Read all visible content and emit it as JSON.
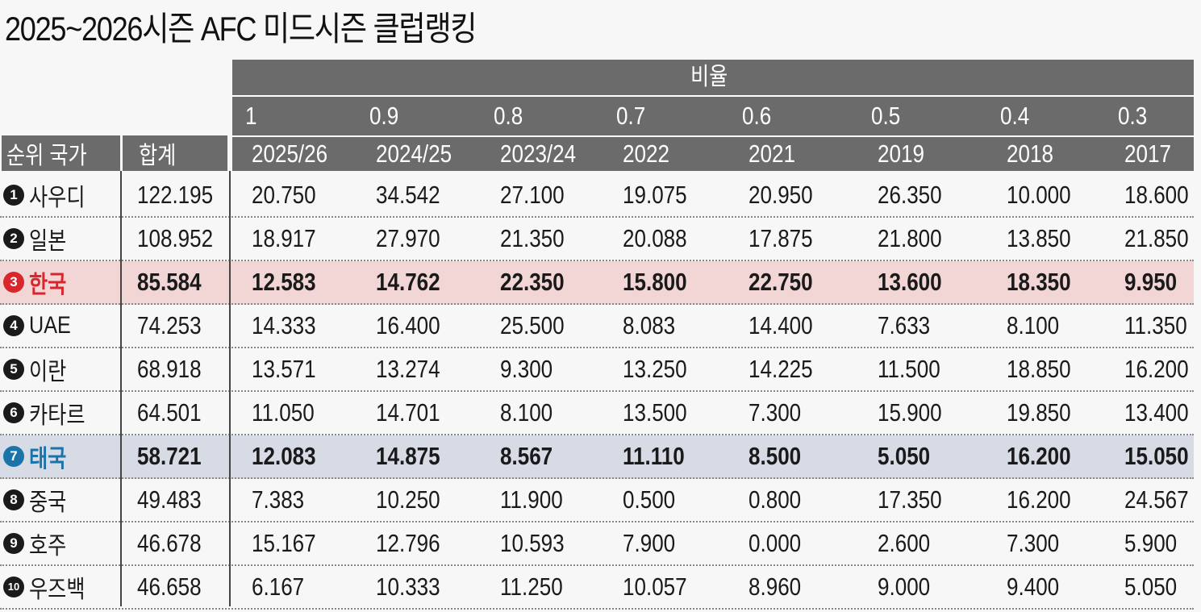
{
  "title": "2025~2026시즌 AFC 미드시즌 클럽랭킹",
  "header": {
    "ratio_label": "비율",
    "rank_country_label": "순위 국가",
    "total_label": "합계",
    "weights": [
      "1",
      "0.9",
      "0.8",
      "0.7",
      "0.6",
      "0.5",
      "0.4",
      "0.3"
    ],
    "seasons": [
      "2025/26",
      "2024/25",
      "2023/24",
      "2022",
      "2021",
      "2019",
      "2018",
      "2017"
    ]
  },
  "rows": [
    {
      "rank": "1",
      "country": "사우디",
      "total": "122.195",
      "values": [
        "20.750",
        "34.542",
        "27.100",
        "19.075",
        "20.950",
        "26.350",
        "10.000",
        "18.600"
      ]
    },
    {
      "rank": "2",
      "country": "일본",
      "total": "108.952",
      "values": [
        "18.917",
        "27.970",
        "21.350",
        "20.088",
        "17.875",
        "21.800",
        "13.850",
        "21.850"
      ]
    },
    {
      "rank": "3",
      "country": "한국",
      "total": "85.584",
      "values": [
        "12.583",
        "14.762",
        "22.350",
        "15.800",
        "22.750",
        "13.600",
        "18.350",
        "9.950"
      ]
    },
    {
      "rank": "4",
      "country": "UAE",
      "total": "74.253",
      "values": [
        "14.333",
        "16.400",
        "25.500",
        "8.083",
        "14.400",
        "7.633",
        "8.100",
        "11.350"
      ]
    },
    {
      "rank": "5",
      "country": "이란",
      "total": "68.918",
      "values": [
        "13.571",
        "13.274",
        "9.300",
        "13.250",
        "14.225",
        "11.500",
        "18.850",
        "16.200"
      ]
    },
    {
      "rank": "6",
      "country": "카타르",
      "total": "64.501",
      "values": [
        "11.050",
        "14.701",
        "8.100",
        "13.500",
        "7.300",
        "15.900",
        "19.850",
        "13.400"
      ]
    },
    {
      "rank": "7",
      "country": "태국",
      "total": "58.721",
      "values": [
        "12.083",
        "14.875",
        "8.567",
        "11.110",
        "8.500",
        "5.050",
        "16.200",
        "15.050"
      ]
    },
    {
      "rank": "8",
      "country": "중국",
      "total": "49.483",
      "values": [
        "7.383",
        "10.250",
        "11.900",
        "0.500",
        "0.800",
        "17.350",
        "16.200",
        "24.567"
      ]
    },
    {
      "rank": "9",
      "country": "호주",
      "total": "46.678",
      "values": [
        "15.167",
        "12.796",
        "10.593",
        "7.900",
        "0.000",
        "2.600",
        "7.300",
        "5.900"
      ]
    },
    {
      "rank": "10",
      "country": "우즈백",
      "total": "46.658",
      "values": [
        "6.167",
        "10.333",
        "11.250",
        "10.057",
        "8.960",
        "9.000",
        "9.400",
        "5.050"
      ]
    }
  ],
  "highlight_colors": {
    "korea": "#d8262c",
    "thailand": "#1b74a9",
    "korea_bg": "#f2d6d6",
    "thailand_bg": "#d7dbe5",
    "header_bg": "#6b6b6b"
  }
}
